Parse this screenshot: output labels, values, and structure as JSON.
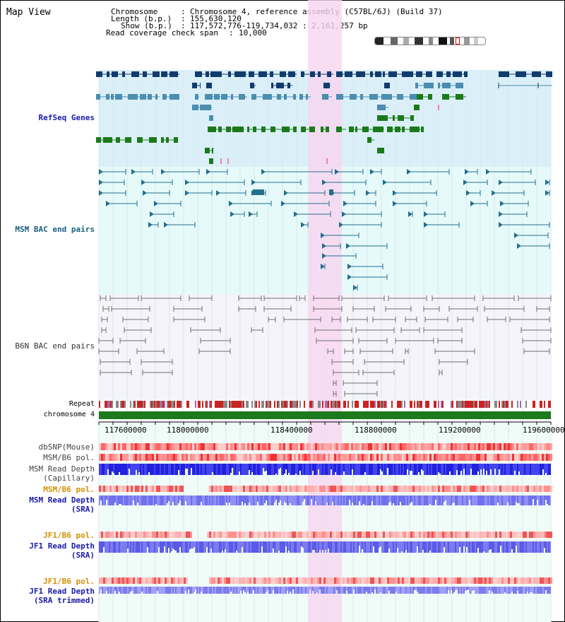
{
  "page": {
    "title": "Map View"
  },
  "header": {
    "chromosome_label": "Chromosome",
    "chromosome_value": "Chromosome 4, reference assembly (C57BL/6J) (Build 37)",
    "length_label": "Length (b.p.)",
    "length_value": "155,630,120",
    "show_label": "Show (b.p.)",
    "show_value": "117,572,776-119,734,032 : 2,161,257 bp",
    "span_label": "Read coverage check span",
    "span_value": "10,000"
  },
  "tracks": {
    "refseq": "RefSeq Genes",
    "msm_bac": "MSM BAC end pairs",
    "b6n_bac": "B6N BAC end pairs",
    "repeat": "Repeat",
    "chromosome": "chromosome 4",
    "dbsnp": "dbSNP(Mouse)",
    "msm_b6_pol": "MSM/B6 pol.",
    "msm_depth_cap_1": "MSM Read Depth",
    "msm_depth_cap_2": "(Capillary)",
    "msm_b6_pol_sra": "MSM/B6 pol.",
    "msm_depth_sra_1": "MSM Read Depth",
    "msm_depth_sra_2": "(SRA)",
    "jf1_b6_pol": "JF1/B6 pol.",
    "jf1_depth_1": "JF1 Read Depth",
    "jf1_depth_2": "(SRA)",
    "jf1_b6_pol_2": "JF1/B6 pol.",
    "jf1_trim_1": "JF1 Read Depth",
    "jf1_trim_2": "(SRA trimmed)"
  },
  "axis": {
    "ticks": [
      "117600000",
      "118000000",
      "118400000",
      "118800000",
      "119200000",
      "119600000"
    ]
  },
  "colors": {
    "refseq_bg": "#dbeff8",
    "msm_bg": "#e6fafa",
    "b6n_bg": "#f4f4fa",
    "highlight": "#f8d6f0",
    "gene_navy": "#123c6e",
    "gene_steel": "#4b8eb0",
    "gene_green": "#1a7a1a",
    "msm_line": "#246e8e",
    "b6n_line": "#707070",
    "chromosome_bar": "#1c7a1c",
    "label_blue": "#1a1aaa",
    "label_orange": "#d49000",
    "depth_blue": "#2222dd",
    "depth_light": "#7c7cf0"
  }
}
